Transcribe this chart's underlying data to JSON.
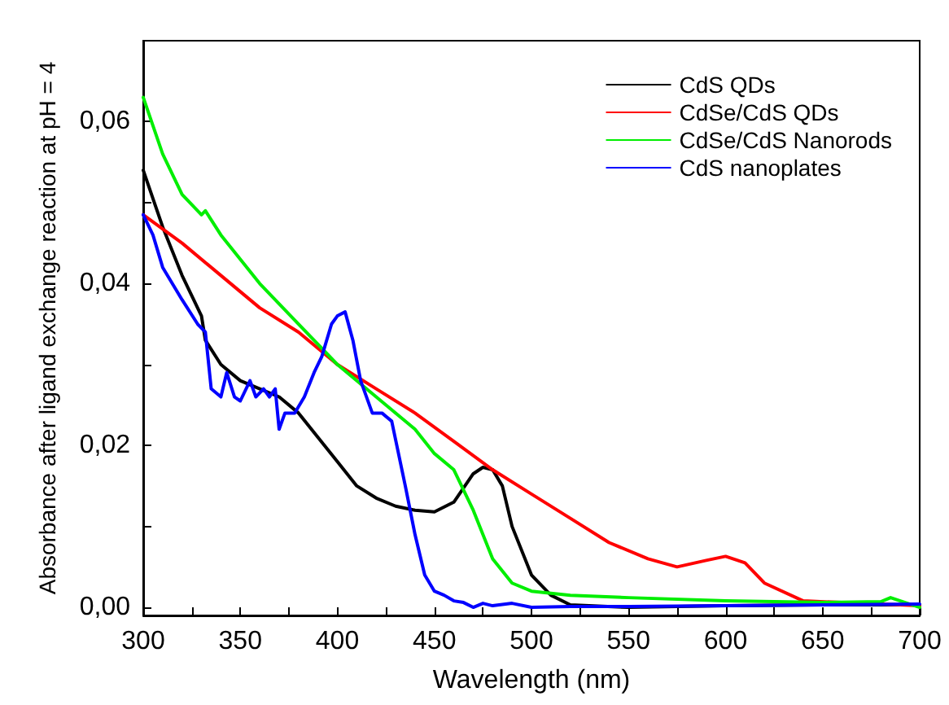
{
  "chart_data": {
    "type": "line",
    "xlabel": "Wavelength (nm)",
    "ylabel": "Absorbance after ligand exchange reaction at pH = 4",
    "xlim": [
      300,
      700
    ],
    "ylim": [
      -0.001,
      0.07
    ],
    "xticks": [
      300,
      {
        "value": 325,
        "label": null
      },
      350,
      {
        "value": 375,
        "label": null
      },
      400,
      {
        "value": 425,
        "label": null
      },
      450,
      {
        "value": 475,
        "label": null
      },
      500,
      {
        "value": 525,
        "label": null
      },
      550,
      {
        "value": 575,
        "label": null
      },
      600,
      {
        "value": 625,
        "label": null
      },
      650,
      {
        "value": 675,
        "label": null
      },
      700
    ],
    "yticks": [
      {
        "value": 0,
        "label": "0,00"
      },
      {
        "value": 0.01,
        "label": null
      },
      {
        "value": 0.02,
        "label": "0,02"
      },
      {
        "value": 0.03,
        "label": null
      },
      {
        "value": 0.04,
        "label": "0,04"
      },
      {
        "value": 0.05,
        "label": null
      },
      {
        "value": 0.06,
        "label": "0,06"
      }
    ],
    "grid": false,
    "legend": "top right",
    "marker": "none",
    "line_style": "solid",
    "series": [
      {
        "name": "CdS QDs",
        "color": "#000000",
        "x": [
          300,
          310,
          320,
          330,
          332,
          340,
          350,
          360,
          370,
          380,
          390,
          400,
          410,
          420,
          430,
          440,
          450,
          460,
          470,
          475,
          480,
          485,
          490,
          500,
          510,
          520,
          550,
          600,
          650,
          700
        ],
        "values": [
          0.054,
          0.047,
          0.041,
          0.036,
          0.033,
          0.03,
          0.028,
          0.027,
          0.026,
          0.024,
          0.021,
          0.018,
          0.015,
          0.0135,
          0.0125,
          0.012,
          0.0118,
          0.013,
          0.0165,
          0.0173,
          0.017,
          0.015,
          0.01,
          0.004,
          0.0015,
          0.0003,
          0,
          0.0002,
          0.0003,
          0.0003
        ]
      },
      {
        "name": "CdSe/CdS QDs",
        "color": "#ff0000",
        "x": [
          300,
          320,
          340,
          360,
          380,
          400,
          420,
          440,
          460,
          480,
          500,
          520,
          540,
          560,
          575,
          590,
          600,
          610,
          620,
          640,
          700
        ],
        "values": [
          0.0485,
          0.045,
          0.041,
          0.037,
          0.034,
          0.03,
          0.027,
          0.024,
          0.0205,
          0.017,
          0.014,
          0.011,
          0.008,
          0.006,
          0.005,
          0.0058,
          0.0063,
          0.0055,
          0.003,
          0.0008,
          0.0002
        ]
      },
      {
        "name": "CdSe/CdS Nanorods",
        "color": "#00ee00",
        "x": [
          300,
          310,
          320,
          330,
          332,
          340,
          360,
          380,
          400,
          420,
          440,
          450,
          460,
          470,
          480,
          490,
          500,
          520,
          550,
          600,
          650,
          680,
          685,
          690,
          700
        ],
        "values": [
          0.063,
          0.056,
          0.051,
          0.0485,
          0.049,
          0.046,
          0.04,
          0.035,
          0.03,
          0.026,
          0.022,
          0.019,
          0.017,
          0.012,
          0.006,
          0.003,
          0.002,
          0.0015,
          0.0012,
          0.0008,
          0.0006,
          0.0007,
          0.0012,
          0.0008,
          0
        ]
      },
      {
        "name": "CdS nanoplates",
        "color": "#0000ff",
        "x": [
          300,
          305,
          310,
          320,
          328,
          332,
          335,
          340,
          343,
          347,
          350,
          355,
          358,
          362,
          365,
          368,
          370,
          373,
          378,
          383,
          388,
          392,
          397,
          400,
          404,
          408,
          412,
          418,
          423,
          428,
          435,
          440,
          445,
          450,
          455,
          460,
          465,
          470,
          475,
          480,
          490,
          500,
          520,
          550,
          600,
          650,
          700
        ],
        "values": [
          0.0485,
          0.046,
          0.042,
          0.038,
          0.035,
          0.034,
          0.027,
          0.026,
          0.029,
          0.026,
          0.0255,
          0.028,
          0.026,
          0.027,
          0.026,
          0.027,
          0.022,
          0.024,
          0.024,
          0.026,
          0.029,
          0.031,
          0.035,
          0.036,
          0.0365,
          0.033,
          0.028,
          0.024,
          0.024,
          0.023,
          0.015,
          0.009,
          0.004,
          0.002,
          0.0015,
          0.0008,
          0.0006,
          0,
          0.0005,
          0.0002,
          0.0005,
          0,
          0.0001,
          0.0001,
          0.0002,
          0.0003,
          0.0004
        ]
      }
    ]
  }
}
